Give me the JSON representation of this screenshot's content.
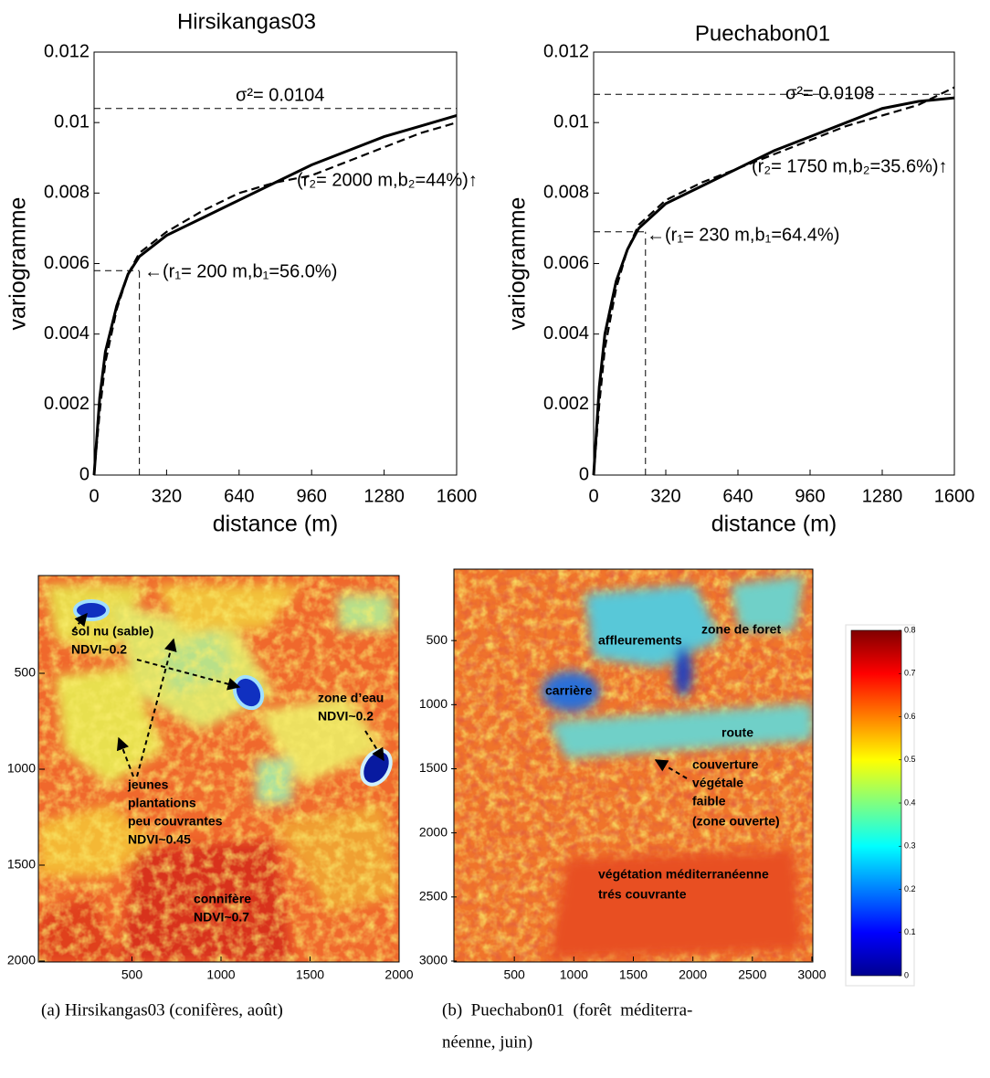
{
  "chart_data": [
    {
      "type": "line",
      "title": "Hirsikangas03",
      "xlabel": "distance (m)",
      "ylabel": "variogramme",
      "x": [
        0,
        25,
        50,
        100,
        150,
        200,
        320,
        480,
        640,
        800,
        960,
        1120,
        1280,
        1440,
        1600
      ],
      "series": [
        {
          "color": "#000000",
          "style": "solid",
          "values": [
            0,
            0.0022,
            0.0035,
            0.0048,
            0.0057,
            0.0062,
            0.0068,
            0.0073,
            0.0078,
            0.0083,
            0.0088,
            0.0092,
            0.0096,
            0.0099,
            0.0102
          ]
        },
        {
          "color": "#000000",
          "style": "dashed",
          "values": [
            0,
            0.0018,
            0.0032,
            0.0047,
            0.0057,
            0.0063,
            0.0069,
            0.0075,
            0.008,
            0.0083,
            0.0085,
            0.0089,
            0.0093,
            0.0097,
            0.01
          ]
        }
      ],
      "xlim": [
        0,
        1600
      ],
      "xticks": [
        0,
        320,
        640,
        960,
        1280,
        1600
      ],
      "ylim": [
        0,
        0.012
      ],
      "yticks": [
        0,
        0.002,
        0.004,
        0.006,
        0.008,
        0.01,
        0.012
      ],
      "sill": 0.0104,
      "range_marker": [
        200,
        0.0058
      ],
      "annotations": [
        "σ²= 0.0104",
        "(r₂= 2000 m,b₂=44%)↑",
        "←(r₁= 200 m,b₁=56.0%)"
      ]
    },
    {
      "type": "line",
      "title": "Puechabon01",
      "xlabel": "distance (m)",
      "ylabel": "variogramme",
      "x": [
        0,
        25,
        50,
        100,
        150,
        200,
        320,
        480,
        640,
        800,
        960,
        1120,
        1280,
        1440,
        1600
      ],
      "series": [
        {
          "color": "#000000",
          "style": "solid",
          "values": [
            0,
            0.0025,
            0.004,
            0.0055,
            0.0064,
            0.007,
            0.0077,
            0.0082,
            0.0087,
            0.0092,
            0.0096,
            0.01,
            0.0104,
            0.0106,
            0.0107
          ]
        },
        {
          "color": "#000000",
          "style": "dashed",
          "values": [
            0,
            0.002,
            0.0036,
            0.0053,
            0.0064,
            0.0071,
            0.0078,
            0.0083,
            0.0087,
            0.0091,
            0.0095,
            0.0099,
            0.0102,
            0.0105,
            0.011
          ]
        }
      ],
      "xlim": [
        0,
        1600
      ],
      "xticks": [
        0,
        320,
        640,
        960,
        1280,
        1600
      ],
      "ylim": [
        0,
        0.012
      ],
      "yticks": [
        0,
        0.002,
        0.004,
        0.006,
        0.008,
        0.01,
        0.012
      ],
      "sill": 0.0108,
      "range_marker": [
        230,
        0.0069
      ],
      "annotations": [
        "σ²= 0.0108",
        "(r₂= 1750 m,b₂=35.6%)↑",
        "←(r₁= 230 m,b₁=64.4%)"
      ]
    },
    {
      "type": "image",
      "xlim": [
        0,
        2000
      ],
      "xticks": [
        500,
        1000,
        1500,
        2000
      ],
      "ylim": [
        0,
        2000
      ],
      "yticks": [
        500,
        1000,
        1500,
        2000
      ],
      "annotations": [
        "sol nu (sable)",
        "NDVI~0.2",
        "zone d’eau",
        "NDVI~0.2",
        "jeunes",
        "plantations",
        "peu couvrantes",
        "NDVI~0.45",
        "connifère",
        "NDVI~0.7"
      ],
      "caption": [
        "(a) Hirsikangas03 (conifères, août)"
      ]
    },
    {
      "type": "image",
      "xlim": [
        0,
        3000
      ],
      "xticks": [
        500,
        1000,
        1500,
        2000,
        2500,
        3000
      ],
      "ylim": [
        0,
        3000
      ],
      "yticks": [
        500,
        1000,
        1500,
        2000,
        2500,
        3000
      ],
      "annotations": [
        "affleurements",
        "zone de foret",
        "carrière",
        "route",
        "couverture",
        "végétale",
        "faible",
        "(zone ouverte)",
        "végétation méditerranéenne",
        "trés couvrante"
      ],
      "caption": [
        "(b)  Puechabon01  (forêt  méditerra-",
        "néenne, juin)"
      ],
      "colorbar": {
        "colormap": "jet",
        "clim": [
          0,
          0.8
        ],
        "ticks": [
          0,
          0.1,
          0.2,
          0.3,
          0.4,
          0.5,
          0.6,
          0.7,
          0.8
        ]
      }
    }
  ]
}
